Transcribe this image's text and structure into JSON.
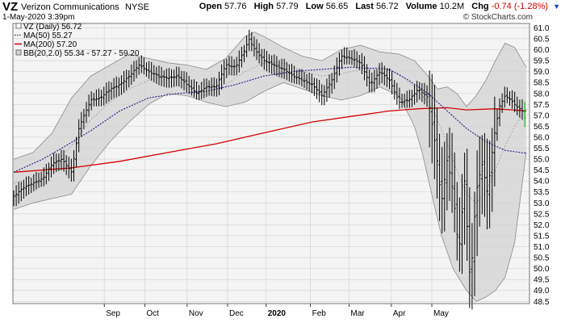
{
  "header": {
    "symbol": "VZ",
    "company": "Verizon Communications",
    "exchange": "NYSE",
    "datetime": "1-May-2020 3:39pm",
    "brand": "© StockCharts.com",
    "quote": {
      "open_label": "Open",
      "open": "57.76",
      "high_label": "High",
      "high": "57.79",
      "low_label": "Low",
      "low": "56.65",
      "last_label": "Last",
      "last": "56.72",
      "volume_label": "Volume",
      "volume": "10.2M",
      "chg_label": "Chg",
      "chg": "-0.74 (-1.28%)"
    }
  },
  "colors": {
    "ma50": "#1a1a8c",
    "ma200": "#d40000",
    "band_fill": "#d4d4d4",
    "band_line": "#8a8a8a",
    "grid": "#d0d0d0",
    "price": "#000000",
    "last_bar": "#00aa00"
  },
  "chart_data": {
    "type": "ohlc",
    "title": "VZ (Daily)",
    "ylim": [
      48.4,
      61.2
    ],
    "ylabel_side": "right",
    "grid": true,
    "legend": {
      "placement": "top-left",
      "entries": [
        {
          "label": "VZ (Daily) 56.72",
          "marker": "box"
        },
        {
          "label": "MA(50) 55.27",
          "marker": "dotted",
          "color": "#1a1a8c"
        },
        {
          "label": "MA(200) 57.20",
          "marker": "line",
          "color": "#d40000"
        },
        {
          "label": "BB(20,2.0) 55.34 - 57.27 - 59.20",
          "marker": "box"
        }
      ]
    },
    "x_ticks": [
      {
        "label": "Sep",
        "bold": false
      },
      {
        "label": "Oct",
        "bold": false
      },
      {
        "label": "Nov",
        "bold": false
      },
      {
        "label": "Dec",
        "bold": false
      },
      {
        "label": "2020",
        "bold": true
      },
      {
        "label": "Feb",
        "bold": false
      },
      {
        "label": "Mar",
        "bold": false
      },
      {
        "label": "Apr",
        "bold": false
      },
      {
        "label": "May",
        "bold": false
      }
    ],
    "y_ticks": [
      48.5,
      49.0,
      49.5,
      50.0,
      50.5,
      51.0,
      51.5,
      52.0,
      52.5,
      53.0,
      53.5,
      54.0,
      54.5,
      55.0,
      55.5,
      56.0,
      56.5,
      57.0,
      57.5,
      58.0,
      58.5,
      59.0,
      59.5,
      60.0,
      60.5,
      61.0
    ],
    "price_path": [
      [
        0,
        53.3
      ],
      [
        5,
        53.7
      ],
      [
        10,
        53.9
      ],
      [
        15,
        54.1
      ],
      [
        20,
        54.8
      ],
      [
        25,
        55.0
      ],
      [
        30,
        54.4
      ],
      [
        34,
        56.5
      ],
      [
        40,
        57.7
      ],
      [
        45,
        57.8
      ],
      [
        50,
        58.2
      ],
      [
        55,
        58.4
      ],
      [
        60,
        58.8
      ],
      [
        65,
        59.3
      ],
      [
        70,
        59.0
      ],
      [
        75,
        58.8
      ],
      [
        80,
        58.7
      ],
      [
        85,
        58.8
      ],
      [
        90,
        58.4
      ],
      [
        95,
        58.0
      ],
      [
        100,
        58.3
      ],
      [
        105,
        58.3
      ],
      [
        110,
        59.3
      ],
      [
        115,
        59.2
      ],
      [
        120,
        60.0
      ],
      [
        122,
        60.5
      ],
      [
        125,
        60.0
      ],
      [
        130,
        59.5
      ],
      [
        135,
        59.3
      ],
      [
        140,
        59.1
      ],
      [
        145,
        58.8
      ],
      [
        150,
        58.6
      ],
      [
        155,
        58.4
      ],
      [
        160,
        57.9
      ],
      [
        165,
        58.6
      ],
      [
        170,
        59.7
      ],
      [
        175,
        59.6
      ],
      [
        180,
        59.4
      ],
      [
        185,
        58.4
      ],
      [
        190,
        59.0
      ],
      [
        195,
        58.6
      ],
      [
        200,
        57.6
      ],
      [
        205,
        57.7
      ],
      [
        210,
        58.2
      ],
      [
        215,
        57.8
      ],
      [
        219,
        55.5
      ],
      [
        222,
        53.0
      ],
      [
        225,
        55.0
      ],
      [
        228,
        53.5
      ],
      [
        231,
        50.7
      ],
      [
        234,
        54.0
      ],
      [
        237,
        49.2
      ],
      [
        240,
        53.5
      ],
      [
        243,
        54.8
      ],
      [
        246,
        53.4
      ],
      [
        249,
        55.9
      ],
      [
        252,
        57.4
      ],
      [
        255,
        57.9
      ],
      [
        258,
        57.7
      ],
      [
        261,
        57.4
      ],
      [
        264,
        57.2
      ],
      [
        266,
        56.7
      ]
    ],
    "ma50": [
      [
        0,
        54.4
      ],
      [
        15,
        55.0
      ],
      [
        25,
        55.5
      ],
      [
        40,
        56.3
      ],
      [
        55,
        57.2
      ],
      [
        70,
        57.8
      ],
      [
        85,
        58.0
      ],
      [
        100,
        58.1
      ],
      [
        115,
        58.4
      ],
      [
        130,
        58.8
      ],
      [
        145,
        59.0
      ],
      [
        160,
        59.1
      ],
      [
        175,
        59.2
      ],
      [
        195,
        59.1
      ],
      [
        205,
        58.6
      ],
      [
        215,
        58.0
      ],
      [
        225,
        57.2
      ],
      [
        235,
        56.4
      ],
      [
        245,
        55.8
      ],
      [
        255,
        55.4
      ],
      [
        266,
        55.27
      ]
    ],
    "ma200": [
      [
        0,
        54.4
      ],
      [
        30,
        54.6
      ],
      [
        55,
        54.9
      ],
      [
        80,
        55.3
      ],
      [
        105,
        55.7
      ],
      [
        130,
        56.2
      ],
      [
        155,
        56.7
      ],
      [
        175,
        56.95
      ],
      [
        195,
        57.2
      ],
      [
        210,
        57.3
      ],
      [
        225,
        57.35
      ],
      [
        235,
        57.25
      ],
      [
        250,
        57.3
      ],
      [
        266,
        57.2
      ]
    ],
    "bb_upper": [
      [
        0,
        55.0
      ],
      [
        10,
        55.3
      ],
      [
        20,
        56.2
      ],
      [
        30,
        57.8
      ],
      [
        40,
        58.8
      ],
      [
        50,
        59.3
      ],
      [
        60,
        59.8
      ],
      [
        70,
        59.6
      ],
      [
        80,
        59.4
      ],
      [
        90,
        59.3
      ],
      [
        100,
        59.1
      ],
      [
        110,
        59.6
      ],
      [
        120,
        60.6
      ],
      [
        125,
        60.8
      ],
      [
        130,
        60.6
      ],
      [
        140,
        60.1
      ],
      [
        150,
        59.7
      ],
      [
        160,
        59.5
      ],
      [
        170,
        60.0
      ],
      [
        180,
        60.2
      ],
      [
        190,
        59.9
      ],
      [
        200,
        59.8
      ],
      [
        208,
        59.5
      ],
      [
        215,
        58.8
      ],
      [
        220,
        58.2
      ],
      [
        225,
        58.3
      ],
      [
        230,
        58.0
      ],
      [
        235,
        57.4
      ],
      [
        240,
        57.9
      ],
      [
        245,
        58.6
      ],
      [
        250,
        59.5
      ],
      [
        255,
        60.3
      ],
      [
        260,
        60.1
      ],
      [
        266,
        59.2
      ]
    ],
    "bb_mid": [
      [
        0,
        53.9
      ],
      [
        10,
        54.2
      ],
      [
        20,
        54.7
      ],
      [
        30,
        55.6
      ],
      [
        40,
        56.8
      ],
      [
        50,
        57.6
      ],
      [
        60,
        58.2
      ],
      [
        70,
        58.6
      ],
      [
        80,
        58.8
      ],
      [
        90,
        58.6
      ],
      [
        100,
        58.4
      ],
      [
        110,
        58.4
      ],
      [
        120,
        59.0
      ],
      [
        130,
        59.4
      ],
      [
        140,
        59.4
      ],
      [
        150,
        59.0
      ],
      [
        160,
        58.8
      ],
      [
        170,
        58.9
      ],
      [
        180,
        59.1
      ],
      [
        190,
        59.2
      ],
      [
        200,
        58.9
      ],
      [
        208,
        58.3
      ],
      [
        215,
        57.6
      ],
      [
        220,
        56.8
      ],
      [
        225,
        55.7
      ],
      [
        230,
        54.5
      ],
      [
        235,
        53.4
      ],
      [
        240,
        53.0
      ],
      [
        245,
        53.5
      ],
      [
        250,
        54.5
      ],
      [
        255,
        55.6
      ],
      [
        260,
        56.5
      ],
      [
        266,
        57.27
      ]
    ],
    "bb_lower": [
      [
        0,
        52.7
      ],
      [
        10,
        53.0
      ],
      [
        20,
        53.2
      ],
      [
        30,
        53.4
      ],
      [
        40,
        54.7
      ],
      [
        50,
        55.8
      ],
      [
        60,
        56.7
      ],
      [
        70,
        57.5
      ],
      [
        80,
        58.0
      ],
      [
        90,
        57.9
      ],
      [
        100,
        57.6
      ],
      [
        110,
        57.4
      ],
      [
        120,
        57.6
      ],
      [
        130,
        58.1
      ],
      [
        140,
        58.5
      ],
      [
        150,
        58.2
      ],
      [
        160,
        57.9
      ],
      [
        170,
        57.7
      ],
      [
        180,
        57.9
      ],
      [
        190,
        58.3
      ],
      [
        200,
        57.9
      ],
      [
        208,
        56.5
      ],
      [
        212,
        55.3
      ],
      [
        218,
        53.0
      ],
      [
        222,
        51.5
      ],
      [
        228,
        50.0
      ],
      [
        235,
        49.0
      ],
      [
        240,
        48.5
      ],
      [
        245,
        48.7
      ],
      [
        250,
        49.0
      ],
      [
        255,
        49.6
      ],
      [
        260,
        51.2
      ],
      [
        266,
        55.34
      ]
    ]
  }
}
